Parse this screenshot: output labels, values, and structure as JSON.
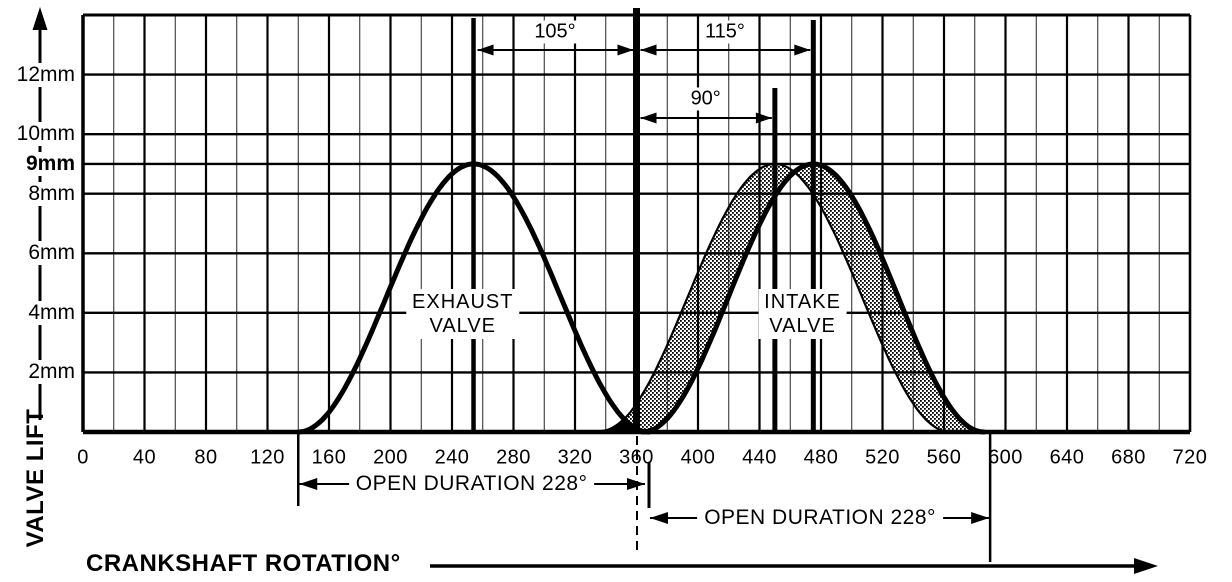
{
  "chart_data": {
    "type": "line",
    "title": "",
    "xlabel": "CRANKSHAFT ROTATION°",
    "ylabel": "VALVE LIFT",
    "xlim": [
      0,
      720
    ],
    "ylim_mm": [
      0,
      14
    ],
    "grid": "on",
    "minor_x_step_deg": 20,
    "major_x_step_deg": 40,
    "x_ticks": [
      0,
      40,
      80,
      120,
      160,
      200,
      240,
      280,
      320,
      360,
      400,
      440,
      480,
      520,
      560,
      600,
      640,
      680,
      720
    ],
    "y_gridlines_mm": [
      2,
      4,
      6,
      8,
      9,
      10,
      12
    ],
    "y_tick_labels": [
      {
        "text": "12mm",
        "mm": 12,
        "bold": false
      },
      {
        "text": "10mm",
        "mm": 10,
        "bold": false
      },
      {
        "text": "9mm",
        "mm": 9,
        "bold": true
      },
      {
        "text": "8mm",
        "mm": 8,
        "bold": false
      },
      {
        "text": "6mm",
        "mm": 6,
        "bold": false
      },
      {
        "text": "4mm",
        "mm": 4,
        "bold": false
      },
      {
        "text": "2mm",
        "mm": 2,
        "bold": false
      }
    ],
    "series": [
      {
        "name": "EXHAUST VALVE",
        "style": "solid-outline",
        "curve": "raised-cosine",
        "open_deg": 140,
        "peak_deg": 254,
        "close_deg": 368,
        "peak_lift_mm": 9
      },
      {
        "name": "INTAKE VALVE",
        "style": "stippled-band",
        "curve": "raised-cosine",
        "edges": [
          {
            "open_deg": 336,
            "peak_deg": 450,
            "close_deg": 564,
            "peak_lift_mm": 9
          },
          {
            "open_deg": 364,
            "peak_deg": 475,
            "close_deg": 586,
            "peak_lift_mm": 9
          }
        ]
      }
    ],
    "marker_lines": [
      {
        "deg": 254,
        "role": "exhaust-peak"
      },
      {
        "deg": 360,
        "role": "tdc-overlap",
        "bold": true
      },
      {
        "deg": 450,
        "role": "intake-90"
      },
      {
        "deg": 475,
        "role": "intake-peak"
      }
    ],
    "dimension_arrows": [
      {
        "label": "105°",
        "from_deg": 254,
        "to_deg": 360,
        "row": "top"
      },
      {
        "label": "115°",
        "from_deg": 360,
        "to_deg": 475,
        "row": "top"
      },
      {
        "label": "90°",
        "from_deg": 360,
        "to_deg": 450,
        "row": "mid"
      }
    ],
    "duration_arrows": [
      {
        "label": "OPEN DURATION 228°",
        "valve": "exhaust",
        "from_deg": 140,
        "to_deg": 368
      },
      {
        "label": "OPEN DURATION 228°",
        "valve": "intake",
        "from_deg": 360,
        "to_deg": 590
      }
    ],
    "series_labels": [
      {
        "text_lines": [
          "EXHAUST",
          "VALVE"
        ],
        "center_deg": 247,
        "center_mm": 3.95
      },
      {
        "text_lines": [
          "INTAKE",
          "VALVE"
        ],
        "center_deg": 468,
        "center_mm": 3.95
      }
    ],
    "colors": {
      "ink": "#000000",
      "paper": "#ffffff"
    }
  }
}
